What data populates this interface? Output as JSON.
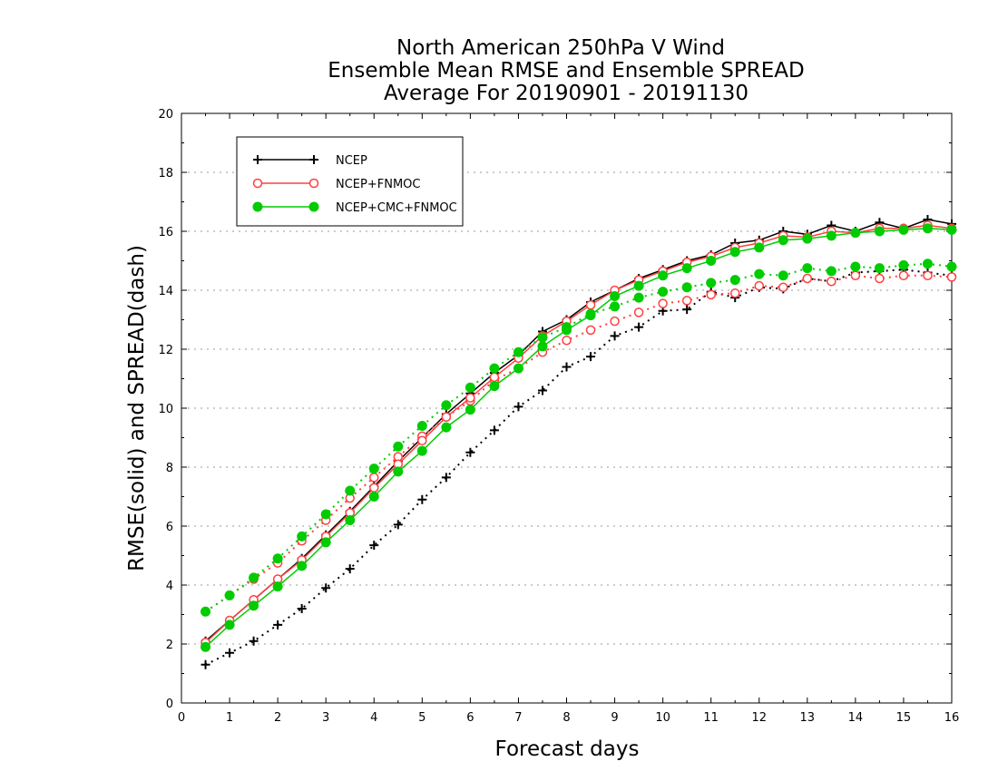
{
  "chart_data": {
    "type": "line",
    "title": [
      "North American 250hPa V Wind",
      "Ensemble Mean RMSE and Ensemble SPREAD",
      "Average For 20190901 - 20191130"
    ],
    "xlabel": "Forecast days",
    "ylabel": "RMSE(solid) and SPREAD(dash)",
    "xlim": [
      0,
      16
    ],
    "ylim": [
      0,
      20
    ],
    "xticks": [
      0,
      1,
      2,
      3,
      4,
      5,
      6,
      7,
      8,
      9,
      10,
      11,
      12,
      13,
      14,
      15,
      16
    ],
    "yticks": [
      0,
      2,
      4,
      6,
      8,
      10,
      12,
      14,
      16,
      18,
      20
    ],
    "grid": true,
    "legend_position": "top-left",
    "x": [
      0.5,
      1,
      1.5,
      2,
      2.5,
      3,
      3.5,
      4,
      4.5,
      5,
      5.5,
      6,
      6.5,
      7,
      7.5,
      8,
      8.5,
      9,
      9.5,
      10,
      10.5,
      11,
      11.5,
      12,
      12.5,
      13,
      13.5,
      14,
      14.5,
      15,
      15.5,
      16
    ],
    "series": [
      {
        "name": "NCEP",
        "color": "#000000",
        "marker": "plus",
        "rmse": [
          2.1,
          2.8,
          3.5,
          4.2,
          4.9,
          5.7,
          6.5,
          7.35,
          8.2,
          9.0,
          9.8,
          10.5,
          11.2,
          11.8,
          12.6,
          13.0,
          13.6,
          14.0,
          14.4,
          14.7,
          15.0,
          15.2,
          15.6,
          15.7,
          16.0,
          15.9,
          16.2,
          16.0,
          16.3,
          16.1,
          16.4,
          16.25
        ],
        "spread": [
          1.3,
          1.7,
          2.1,
          2.65,
          3.2,
          3.9,
          4.55,
          5.35,
          6.05,
          6.9,
          7.65,
          8.5,
          9.25,
          10.05,
          10.6,
          11.4,
          11.75,
          12.45,
          12.75,
          13.3,
          13.35,
          13.95,
          13.75,
          14.1,
          14.05,
          14.4,
          14.3,
          14.6,
          14.65,
          14.7,
          14.6,
          14.5
        ]
      },
      {
        "name": "NCEP+FNMOC",
        "color": "#ff4040",
        "marker": "open-circle",
        "rmse": [
          2.05,
          2.8,
          3.5,
          4.2,
          4.85,
          5.65,
          6.45,
          7.3,
          8.1,
          8.9,
          9.7,
          10.35,
          11.05,
          11.7,
          12.45,
          12.95,
          13.5,
          14.0,
          14.35,
          14.65,
          14.95,
          15.15,
          15.45,
          15.6,
          15.85,
          15.8,
          16.0,
          15.95,
          16.1,
          16.1,
          16.2,
          16.1
        ],
        "spread": [
          3.1,
          3.65,
          4.2,
          4.75,
          5.5,
          6.2,
          6.95,
          7.65,
          8.35,
          9.05,
          9.7,
          10.25,
          10.95,
          11.35,
          11.9,
          12.3,
          12.65,
          12.95,
          13.25,
          13.55,
          13.65,
          13.85,
          13.9,
          14.15,
          14.1,
          14.4,
          14.3,
          14.5,
          14.4,
          14.5,
          14.5,
          14.45
        ]
      },
      {
        "name": "NCEP+CMC+FNMOC",
        "color": "#00cc00",
        "marker": "filled-circle",
        "rmse": [
          1.9,
          2.65,
          3.3,
          3.95,
          4.65,
          5.45,
          6.2,
          7.0,
          7.85,
          8.55,
          9.35,
          9.95,
          10.75,
          11.35,
          12.1,
          12.65,
          13.15,
          13.8,
          14.15,
          14.5,
          14.75,
          15.0,
          15.3,
          15.45,
          15.7,
          15.75,
          15.85,
          15.95,
          16.0,
          16.05,
          16.1,
          16.05
        ],
        "spread": [
          3.1,
          3.65,
          4.25,
          4.9,
          5.65,
          6.4,
          7.2,
          7.95,
          8.7,
          9.4,
          10.1,
          10.7,
          11.35,
          11.9,
          12.4,
          12.75,
          13.2,
          13.45,
          13.75,
          13.95,
          14.1,
          14.25,
          14.35,
          14.55,
          14.5,
          14.75,
          14.65,
          14.8,
          14.75,
          14.85,
          14.9,
          14.8
        ]
      }
    ]
  }
}
